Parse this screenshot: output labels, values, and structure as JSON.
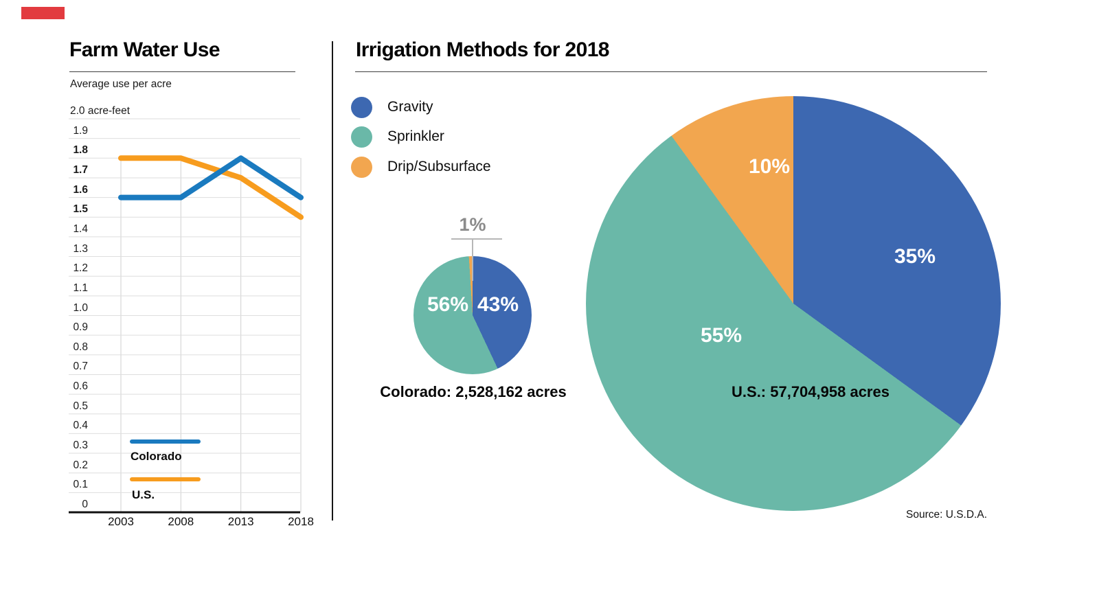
{
  "brand_mark_color": "#e23b3f",
  "left_panel": {
    "title": "Farm Water Use",
    "subtitle": "Average use per acre"
  },
  "right_panel": {
    "title": "Irrigation Methods for 2018",
    "legend": [
      {
        "label": "Gravity",
        "color": "#3d68b1"
      },
      {
        "label": "Sprinkler",
        "color": "#6ab8a8"
      },
      {
        "label": "Drip/Subsurface",
        "color": "#f2a64f"
      }
    ],
    "source": "Source: U.S.D.A."
  },
  "chart_data": [
    {
      "type": "line",
      "title": "Farm Water Use",
      "subtitle": "Average use per acre",
      "x": [
        "2003",
        "2008",
        "2013",
        "2018"
      ],
      "series": [
        {
          "name": "Colorado",
          "color": "#1a7abf",
          "values": [
            1.6,
            1.6,
            1.8,
            1.6
          ]
        },
        {
          "name": "U.S.",
          "color": "#f79c1e",
          "values": [
            1.8,
            1.8,
            1.7,
            1.5
          ]
        }
      ],
      "ylabel_top": "2.0 acre-feet",
      "unit": "acre-feet",
      "ylim": [
        0,
        2.0
      ],
      "ytick_step": 0.1,
      "bold_yticks": [
        1.5,
        1.6,
        1.7,
        1.8
      ],
      "grid": true
    },
    {
      "type": "pie",
      "title": "Colorado: 2,528,162 acres",
      "labels": [
        "Gravity",
        "Sprinkler",
        "Drip/Subsurface"
      ],
      "values": [
        43,
        56,
        1
      ],
      "display_labels": [
        "43%",
        "56%",
        "1%"
      ]
    },
    {
      "type": "pie",
      "title": "U.S.: 57,704,958 acres",
      "labels": [
        "Gravity",
        "Sprinkler",
        "Drip/Subsurface"
      ],
      "values": [
        35,
        55,
        10
      ],
      "display_labels": [
        "35%",
        "55%",
        "10%"
      ]
    }
  ]
}
